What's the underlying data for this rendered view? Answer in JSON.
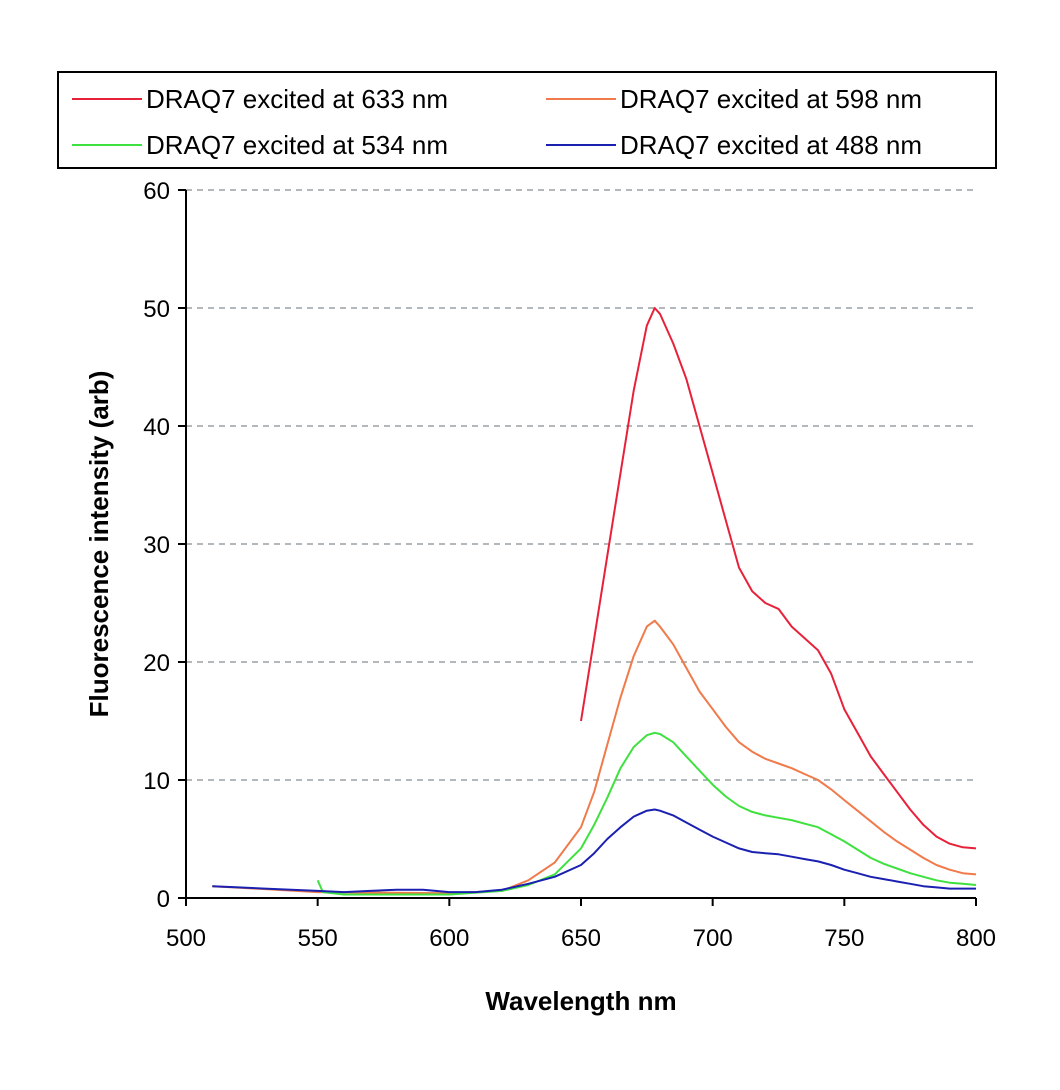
{
  "chart_data": {
    "type": "line",
    "title": "",
    "xlabel": "Wavelength  nm",
    "ylabel": "Fluorescence intensity (arb)",
    "xlim": [
      500,
      800
    ],
    "ylim": [
      0,
      60
    ],
    "xticks": [
      500,
      550,
      600,
      650,
      700,
      750,
      800
    ],
    "yticks": [
      0,
      10,
      20,
      30,
      40,
      50,
      60
    ],
    "grid": "horizontal dashed",
    "legend": "top",
    "series": [
      {
        "name": "DRAQ7 excited at 633 nm",
        "color": "#e8213a",
        "x": [
          650,
          655,
          660,
          665,
          670,
          675,
          678,
          680,
          685,
          690,
          695,
          700,
          705,
          710,
          715,
          720,
          725,
          730,
          735,
          740,
          745,
          750,
          755,
          760,
          765,
          770,
          775,
          780,
          785,
          790,
          795,
          800
        ],
        "y": [
          15,
          22,
          29,
          36,
          43,
          48.5,
          50,
          49.5,
          47,
          44,
          40,
          36,
          32,
          28,
          26,
          25,
          24.5,
          23,
          22,
          21,
          19,
          16,
          14,
          12,
          10.5,
          9,
          7.5,
          6.2,
          5.2,
          4.6,
          4.3,
          4.2
        ]
      },
      {
        "name": "DRAQ7 excited at 598 nm",
        "color": "#f07a4a",
        "x": [
          510,
          550,
          600,
          620,
          630,
          640,
          650,
          655,
          660,
          665,
          670,
          675,
          678,
          680,
          685,
          690,
          695,
          700,
          705,
          710,
          715,
          720,
          725,
          730,
          735,
          740,
          745,
          750,
          755,
          760,
          765,
          770,
          775,
          780,
          785,
          790,
          795,
          800
        ],
        "y": [
          1,
          0.5,
          0.4,
          0.6,
          1.5,
          3,
          6,
          9,
          13,
          17,
          20.5,
          23,
          23.5,
          23,
          21.5,
          19.5,
          17.5,
          16,
          14.5,
          13.2,
          12.4,
          11.8,
          11.4,
          11,
          10.5,
          10,
          9.2,
          8.3,
          7.4,
          6.5,
          5.6,
          4.8,
          4.1,
          3.4,
          2.8,
          2.4,
          2.1,
          2
        ]
      },
      {
        "name": "DRAQ7 excited at 534 nm",
        "color": "#3fe13f",
        "x": [
          550,
          552,
          560,
          580,
          600,
          620,
          630,
          640,
          650,
          655,
          660,
          665,
          670,
          675,
          678,
          680,
          685,
          690,
          695,
          700,
          705,
          710,
          715,
          720,
          725,
          730,
          735,
          740,
          745,
          750,
          755,
          760,
          765,
          770,
          775,
          780,
          785,
          790,
          795,
          800
        ],
        "y": [
          1.5,
          0.5,
          0.3,
          0.3,
          0.3,
          0.6,
          1.1,
          2,
          4.2,
          6.2,
          8.5,
          11,
          12.8,
          13.8,
          14,
          13.9,
          13.2,
          12,
          10.8,
          9.6,
          8.6,
          7.8,
          7.3,
          7,
          6.8,
          6.6,
          6.3,
          6,
          5.4,
          4.8,
          4.1,
          3.4,
          2.9,
          2.5,
          2.1,
          1.8,
          1.5,
          1.3,
          1.2,
          1.1
        ]
      },
      {
        "name": "DRAQ7 excited at 488 nm",
        "color": "#1a20b0",
        "x": [
          510,
          520,
          530,
          540,
          550,
          560,
          570,
          580,
          590,
          600,
          610,
          620,
          630,
          640,
          650,
          655,
          660,
          665,
          670,
          675,
          678,
          680,
          685,
          690,
          695,
          700,
          705,
          710,
          715,
          720,
          725,
          730,
          735,
          740,
          745,
          750,
          755,
          760,
          765,
          770,
          775,
          780,
          785,
          790,
          795,
          800
        ],
        "y": [
          1,
          0.9,
          0.8,
          0.7,
          0.6,
          0.5,
          0.6,
          0.7,
          0.7,
          0.5,
          0.5,
          0.7,
          1.2,
          1.8,
          2.8,
          3.8,
          5,
          6,
          6.9,
          7.4,
          7.5,
          7.4,
          7,
          6.4,
          5.8,
          5.2,
          4.7,
          4.2,
          3.9,
          3.8,
          3.7,
          3.5,
          3.3,
          3.1,
          2.8,
          2.4,
          2.1,
          1.8,
          1.6,
          1.4,
          1.2,
          1,
          0.9,
          0.8,
          0.8,
          0.8
        ]
      }
    ]
  }
}
